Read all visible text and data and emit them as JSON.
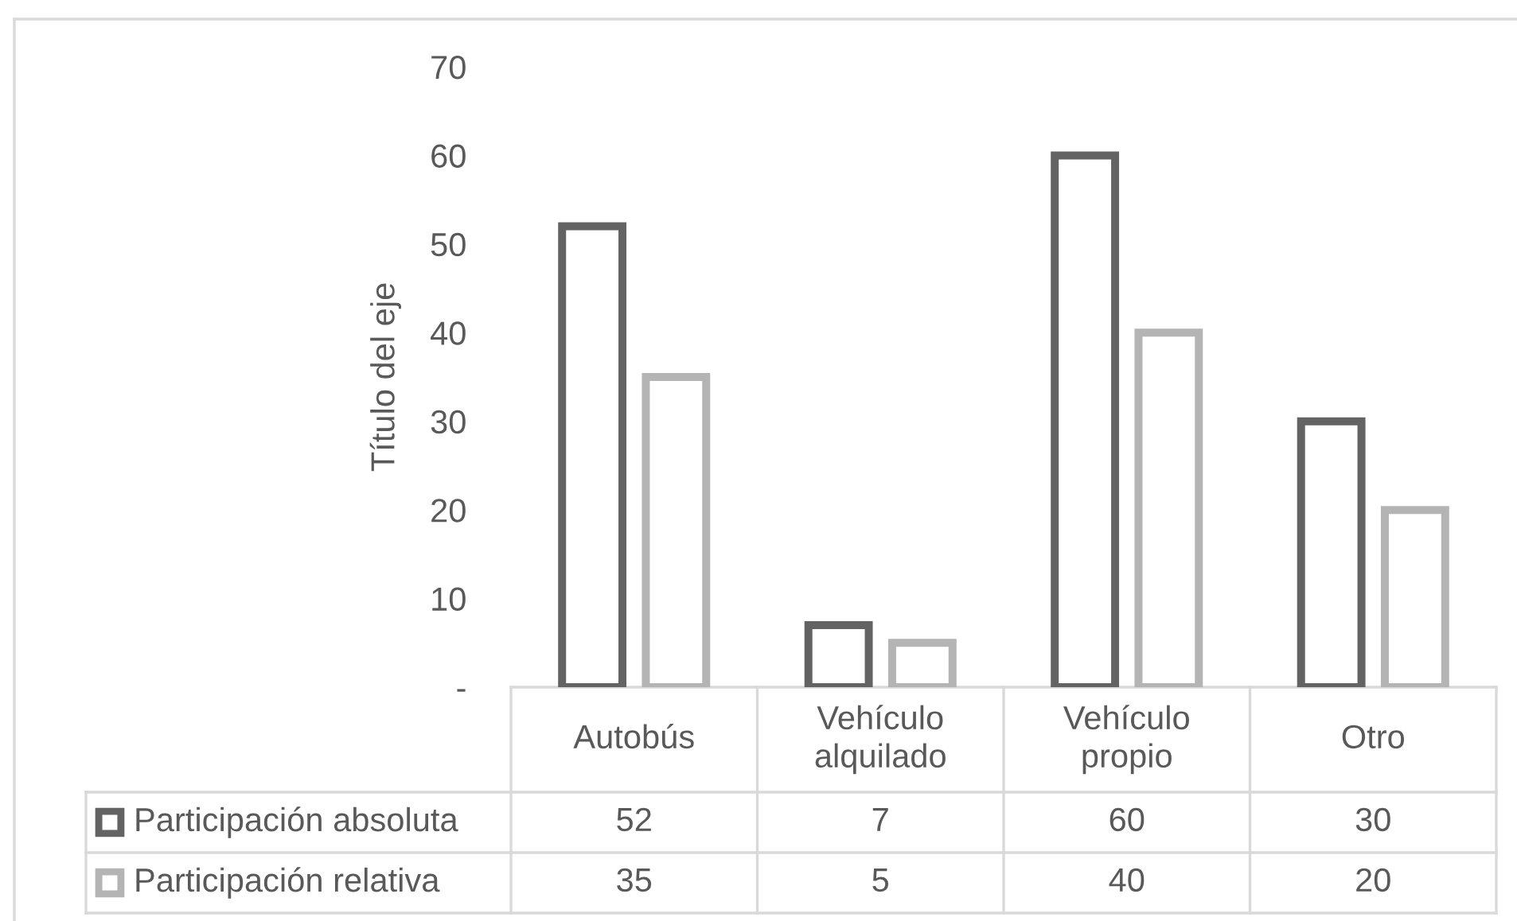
{
  "chart_data": {
    "type": "bar",
    "ylabel": "Título del eje",
    "categories": [
      "Autobús",
      "Vehículo\nalquilado",
      "Vehículo\npropio",
      "Otro"
    ],
    "series": [
      {
        "name": "Participación absoluta",
        "color": "#636363",
        "values": [
          52,
          7,
          60,
          30
        ]
      },
      {
        "name": "Participación relativa",
        "color": "#b4b4b4",
        "values": [
          35,
          5,
          40,
          20
        ]
      }
    ],
    "ylim": [
      0,
      70
    ],
    "yticks": [
      {
        "value": 0,
        "label": "-"
      },
      10,
      20,
      30,
      40,
      50,
      60,
      70
    ],
    "grid": false,
    "legend": "bottom left",
    "data_labels": true
  }
}
